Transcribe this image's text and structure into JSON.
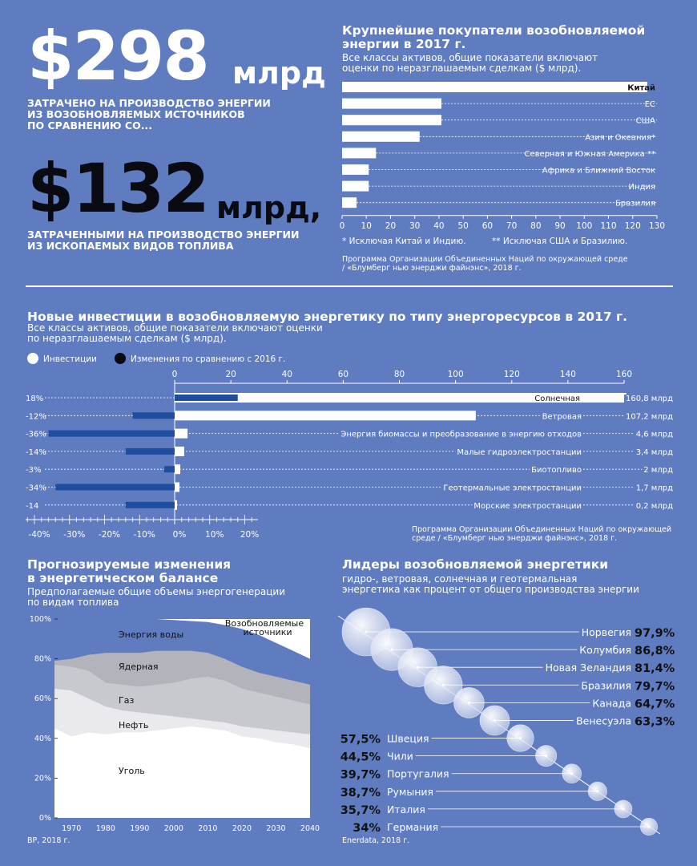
{
  "headline": {
    "amount1": "$298",
    "unit1": "млрд",
    "caption1": [
      "ЗАТРАЧЕНО НА ПРОИЗВОДСТВО ЭНЕРГИИ",
      "ИЗ ВОЗОБНОВЛЯЕМЫХ ИСТОЧНИКОВ",
      "ПО СРАВНЕНИЮ СО..."
    ],
    "amount2": "$132",
    "unit2": "млрд,",
    "caption2": [
      "ЗАТРАЧЕННЫМИ НА ПРОИЗВОДСТВО ЭНЕРГИИ",
      "ИЗ ИСКОПАЕМЫХ ВИДОВ ТОПЛИВА"
    ]
  },
  "colors": {
    "background": "#5f7cc0",
    "bar_dark": "#1f4e9e",
    "white": "#ffffff"
  },
  "chart_data": [
    {
      "type": "bar",
      "orientation": "horizontal",
      "title": [
        "Крупнейшие покупатели возобновляемой",
        "энергии в 2017 г."
      ],
      "subtitle": [
        "Все классы активов, общие показатели включают",
        "оценки по неразглашаемым сделкам ($ млрд)."
      ],
      "categories": [
        "Китай",
        "ЕС",
        "США",
        "Азия и Океания*",
        "Северная и Южная Америка **",
        "Африка и Ближний Восток",
        "Индия",
        "Бразилия"
      ],
      "values": [
        126,
        41,
        41,
        32,
        14,
        11,
        11,
        6
      ],
      "xlim": [
        0,
        130
      ],
      "xticks": [
        0,
        10,
        20,
        30,
        40,
        50,
        60,
        70,
        80,
        90,
        100,
        110,
        120,
        130
      ],
      "footnotes": [
        "* Исключая Китай и Индию.",
        "** Исключая США и Бразилию."
      ],
      "source": [
        "Программа Организации Объединенных Наций по окружающей среде",
        "/ «Блумберг нью энерджи файнэнс», 2018 г."
      ]
    },
    {
      "type": "bar",
      "orientation": "horizontal",
      "title": "Новые инвестиции в возобновляемую энергетику по типу энергоресурсов в 2017 г.",
      "subtitle": [
        "Все классы активов, общие показатели включают оценки",
        "по неразглашаемым сделкам ($ млрд)."
      ],
      "legend": [
        "Инвестиции",
        "Изменения по сравнению с 2016 г."
      ],
      "categories": [
        "Солнечная",
        "Ветровая",
        "Энергия биомассы и преобразование в энергию отходов",
        "Малые гидроэлектростанции",
        "Биотопливо",
        "Геотермальные электростанции",
        "Морские электростанции"
      ],
      "series": [
        {
          "name": "Инвестиции",
          "values": [
            160.8,
            107.2,
            4.6,
            3.4,
            2,
            1.7,
            0.2
          ]
        },
        {
          "name": "Изменения по сравнению с 2016 г.",
          "values": [
            18,
            -12,
            -36,
            -14,
            -3,
            -34,
            -14
          ]
        }
      ],
      "value_labels": [
        "160,8 млрд",
        "107,2 млрд",
        "4,6 млрд",
        "3,4 млрд",
        "2 млрд",
        "1,7 млрд",
        "0,2 млрд"
      ],
      "change_labels": [
        "18%",
        "-12%",
        "-36%",
        "-14%",
        "-3%",
        "-34%",
        "-14"
      ],
      "top_axis": {
        "range": [
          0,
          160
        ],
        "ticks": [
          "0",
          "20",
          "40",
          "60",
          "80",
          "100",
          "120",
          "140",
          "160"
        ]
      },
      "bottom_axis": {
        "range": [
          -40,
          20
        ],
        "ticks": [
          "-40%",
          "-30%",
          "-20%",
          "-10%",
          "0%",
          "10%",
          "20%"
        ]
      },
      "source": [
        "Программа Организации Объединенных Наций по окружающей",
        "среде / «Блумберг нью энерджи файнэнс», 2018 г."
      ]
    },
    {
      "type": "area",
      "title": [
        "Прогнозируемые изменения",
        "в энергетическом балансе"
      ],
      "subtitle": [
        "Предполагаемые общие объемы энергогенерации",
        "по видам топлива"
      ],
      "x": [
        1965,
        1970,
        1975,
        1980,
        1985,
        1990,
        1995,
        2000,
        2005,
        2010,
        2015,
        2020,
        2025,
        2030,
        2035,
        2040
      ],
      "series": [
        {
          "name": "Уголь",
          "values": [
            45,
            41,
            43,
            42,
            43,
            43,
            44,
            45,
            46,
            45,
            44,
            41,
            40,
            38,
            37,
            35
          ]
        },
        {
          "name": "Нефть",
          "values": [
            65,
            64,
            60,
            56,
            54,
            53,
            52,
            51,
            50,
            49,
            48,
            46,
            45,
            44,
            43,
            42
          ]
        },
        {
          "name": "Газ",
          "values": [
            77,
            76,
            74,
            68,
            67,
            66,
            67,
            68,
            70,
            71,
            69,
            65,
            63,
            61,
            59,
            57
          ]
        },
        {
          "name": "Ядерная",
          "values": [
            79,
            80,
            82,
            83,
            83,
            83,
            84,
            84,
            84,
            83,
            80,
            76,
            73,
            71,
            69,
            67
          ]
        },
        {
          "name": "Энергия воды",
          "values": [
            100,
            100,
            100,
            100,
            100,
            100,
            100,
            99.5,
            99,
            98.5,
            97,
            95,
            92,
            88,
            84,
            80
          ]
        },
        {
          "name": "Возобновляемые источники",
          "values": [
            100,
            100,
            100,
            100,
            100,
            100,
            100,
            100,
            100,
            100,
            100,
            100,
            100,
            100,
            100,
            100
          ]
        }
      ],
      "series_labels": [
        "Энергия воды",
        "Ядерная",
        "Газ",
        "Нефть",
        "Уголь",
        [
          "Возобновляемые",
          "источники"
        ]
      ],
      "ylim": [
        0,
        100
      ],
      "yticks": [
        "0%",
        "20%",
        "40%",
        "60%",
        "80%",
        "100%"
      ],
      "xticks": [
        "1970",
        "1980",
        "1990",
        "2000",
        "2010",
        "2020",
        "2030",
        "2040"
      ],
      "source": "BP, 2018 г."
    },
    {
      "type": "scatter",
      "title": "Лидеры возобновляемой энергетики",
      "subtitle": [
        "гидро-, ветровая, солнечная и геотермальная",
        "энергетика как процент от общего производства энергии"
      ],
      "categories": [
        "Норвегия",
        "Колумбия",
        "Новая Зеландия",
        "Бразилия",
        "Канада",
        "Венесуэла",
        "Швеция",
        "Чили",
        "Португалия",
        "Румыния",
        "Италия",
        "Германия"
      ],
      "values": [
        97.9,
        86.8,
        81.4,
        79.7,
        64.7,
        63.3,
        57.5,
        44.5,
        39.7,
        38.7,
        35.7,
        34
      ],
      "value_labels": [
        "97,9%",
        "86,8%",
        "81,4%",
        "79,7%",
        "64,7%",
        "63,3%",
        "57,5%",
        "44,5%",
        "39,7%",
        "38,7%",
        "35,7%",
        "34%"
      ],
      "source": "Enerdata, 2018 г."
    }
  ]
}
